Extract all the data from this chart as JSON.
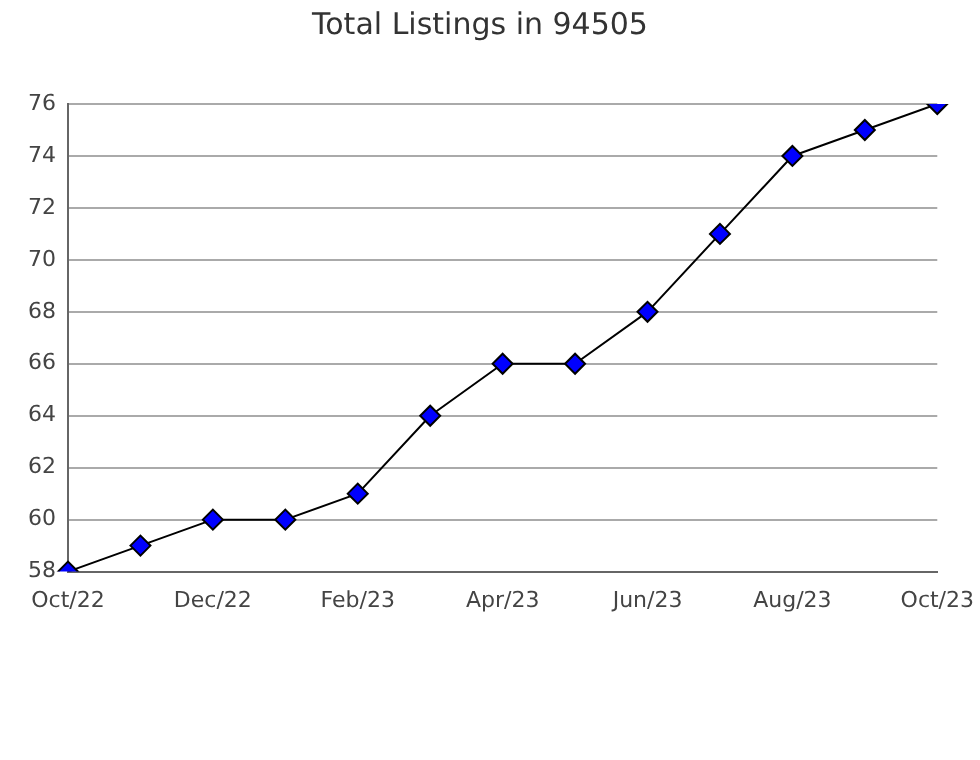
{
  "chart_data": {
    "type": "line",
    "title": "Total Listings in 94505",
    "categories": [
      "Oct/22",
      null,
      "Dec/22",
      null,
      "Feb/23",
      null,
      "Apr/23",
      null,
      "Jun/23",
      null,
      "Aug/23",
      null,
      "Oct/23"
    ],
    "series": [
      {
        "color": "#0000ff",
        "values": [
          58,
          59,
          60,
          60,
          61,
          64,
          66,
          66,
          68,
          71,
          74,
          75,
          76
        ]
      }
    ],
    "ylim": [
      58,
      76
    ],
    "yticks": [
      58,
      60,
      62,
      64,
      66,
      68,
      70,
      72,
      74,
      76
    ],
    "grid": "y",
    "marker": "diamond",
    "line_style": "solid",
    "legend": false
  }
}
